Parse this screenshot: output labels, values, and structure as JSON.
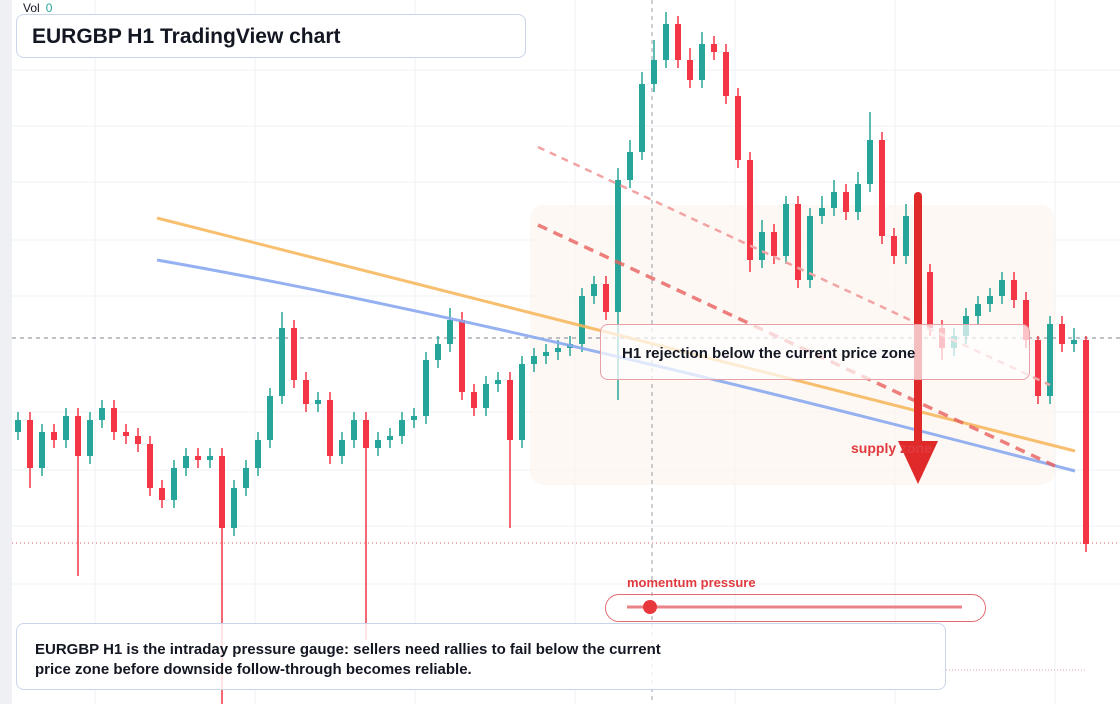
{
  "title": "EURGBP H1 TradingView chart",
  "volume": {
    "label": "Vol",
    "value": 0
  },
  "annotations": {
    "rejection": "H1 rejection below the current price zone",
    "supply": "supply zone",
    "momentum": "momentum pressure"
  },
  "note": "EURGBP H1 is the intraday pressure gauge: sellers need rallies to fail below the current price zone before downside follow-through becomes reliable.",
  "chart_data": {
    "type": "candlestick",
    "ylim": [
      0,
      88
    ],
    "up_color": "#26a69a",
    "down_color": "#f23645",
    "open": [
      34,
      35.5,
      29.5,
      34,
      33,
      36,
      31,
      35.5,
      37,
      34,
      33.5,
      32.5,
      27,
      25.5,
      29.5,
      31,
      30.5,
      31,
      22,
      27,
      29.5,
      33,
      38.5,
      47,
      40.5,
      37.5,
      38,
      31,
      33,
      35.5,
      32,
      33,
      33.5,
      35.5,
      36,
      43,
      45,
      48,
      39,
      37,
      40,
      40.5,
      33,
      42.5,
      43.5,
      44,
      44.5,
      45,
      51,
      52.5,
      49,
      65.5,
      69,
      77.5,
      80.5,
      85,
      80.5,
      78,
      82.5,
      81.5,
      76,
      68,
      55.5,
      59,
      56,
      62.5,
      53,
      61,
      62,
      64,
      61.5,
      65,
      70.5,
      58.5,
      56,
      61,
      54,
      47,
      44.5,
      46,
      48.5,
      50,
      51,
      53,
      50.5,
      45.5,
      38.5,
      47.5,
      45,
      45.5
    ],
    "high": [
      36.5,
      36.5,
      35,
      35,
      37,
      37,
      36.5,
      38,
      38,
      35,
      34.5,
      33.5,
      28,
      30.5,
      32,
      32,
      32,
      32,
      28,
      30.5,
      34,
      39.5,
      49,
      48,
      41.5,
      39,
      39,
      34,
      36.5,
      36.5,
      34,
      34.5,
      36.5,
      37,
      44,
      46,
      49.5,
      49,
      40,
      41,
      41.5,
      41.5,
      43.5,
      44.5,
      45,
      45.5,
      46,
      52,
      53.5,
      53.5,
      67,
      70.5,
      79,
      83,
      86.5,
      86,
      82,
      84,
      83.5,
      82.5,
      77,
      69,
      60.5,
      60,
      63.5,
      63.5,
      62,
      63.5,
      65.5,
      65,
      66.5,
      74,
      71.5,
      59.5,
      62.5,
      62,
      55,
      48,
      47,
      49.5,
      51,
      52,
      54,
      54,
      51.5,
      46,
      48.5,
      48.5,
      47,
      46
    ],
    "low": [
      33,
      27,
      28.5,
      32,
      32,
      16,
      30,
      34.5,
      33,
      32.5,
      31.5,
      26,
      24.5,
      24.5,
      28.5,
      29.5,
      29.5,
      0,
      21,
      26,
      28.5,
      32,
      37.5,
      39.5,
      36.5,
      36.5,
      30,
      30,
      32,
      8,
      31,
      32,
      32.5,
      34.5,
      35,
      42,
      44,
      38,
      36,
      36,
      39,
      22,
      32,
      41.5,
      42.5,
      43,
      43.5,
      44,
      50,
      48,
      38,
      64.5,
      68,
      76.5,
      79.5,
      79.5,
      77,
      77,
      80.5,
      75,
      67,
      54,
      54.5,
      55,
      55,
      52,
      52,
      60,
      61,
      60.5,
      60.5,
      64,
      57.5,
      55,
      55,
      53,
      46,
      43,
      43.5,
      45,
      47.5,
      49,
      50,
      49.5,
      44.5,
      37.5,
      37.5,
      44,
      44,
      19
    ],
    "close": [
      35.5,
      29.5,
      34,
      33,
      36,
      31,
      35.5,
      37,
      34,
      33.5,
      32.5,
      27,
      25.5,
      29.5,
      31,
      30.5,
      31,
      22,
      27,
      29.5,
      33,
      38.5,
      47,
      40.5,
      37.5,
      38,
      31,
      33,
      35.5,
      32,
      33,
      33.5,
      35.5,
      36,
      43,
      45,
      48,
      39,
      37,
      40,
      40.5,
      33,
      42.5,
      43.5,
      44,
      44.5,
      45,
      51,
      52.5,
      49,
      65.5,
      69,
      77.5,
      80.5,
      85,
      80.5,
      78,
      82.5,
      81.5,
      76,
      68,
      55.5,
      59,
      56,
      62.5,
      53,
      61,
      62,
      64,
      61.5,
      65,
      70.5,
      58.5,
      56,
      61,
      54,
      47,
      44.5,
      46,
      48.5,
      50,
      51,
      53,
      50.5,
      45.5,
      38.5,
      47.5,
      45,
      45.5,
      20
    ]
  }
}
